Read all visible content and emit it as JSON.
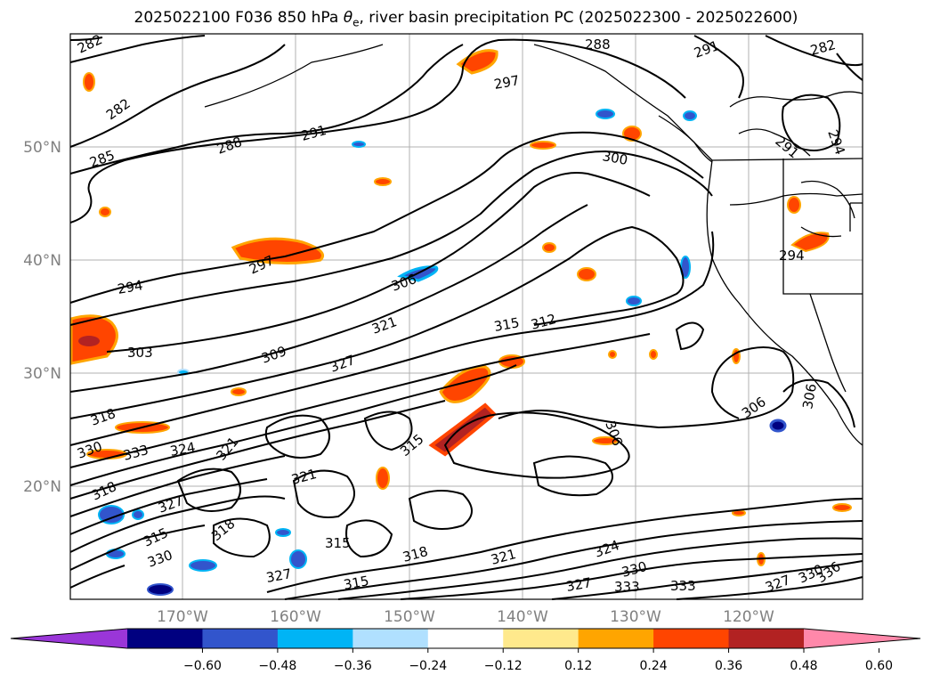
{
  "title": {
    "prefix": "2025022100 F036 850 hPa ",
    "symbol": "θ",
    "subscript": "e",
    "suffix": ", river basin precipitation PC (2025022300 - 2025022600)"
  },
  "map": {
    "lat_labels": [
      "50°N",
      "40°N",
      "30°N",
      "20°N"
    ],
    "lon_labels": [
      "170°W",
      "160°W",
      "150°W",
      "140°W",
      "130°W",
      "120°W"
    ],
    "contour_labels": [
      "282",
      "282",
      "285",
      "288",
      "291",
      "288",
      "297",
      "291",
      "300",
      "294",
      "297",
      "294",
      "306",
      "303",
      "321",
      "315",
      "312",
      "309",
      "327",
      "306",
      "318",
      "330",
      "333",
      "324",
      "321",
      "315",
      "306",
      "318",
      "327",
      "318",
      "315",
      "321",
      "327",
      "315",
      "330",
      "315",
      "318",
      "321",
      "324",
      "330",
      "327",
      "333",
      "333",
      "327",
      "330",
      "336",
      "306",
      "282",
      "291",
      "294"
    ]
  },
  "colorbar": {
    "colors": [
      "#9a36d8",
      "#000080",
      "#3255cc",
      "#00b4f5",
      "#b0e0ff",
      "#ffffff",
      "#ffe98c",
      "#ffa500",
      "#ff4500",
      "#b22222",
      "#ff88aa"
    ],
    "tick_labels": [
      "−0.60",
      "−0.48",
      "−0.36",
      "−0.24",
      "−0.12",
      "0.12",
      "0.24",
      "0.36",
      "0.48",
      "0.60"
    ]
  }
}
